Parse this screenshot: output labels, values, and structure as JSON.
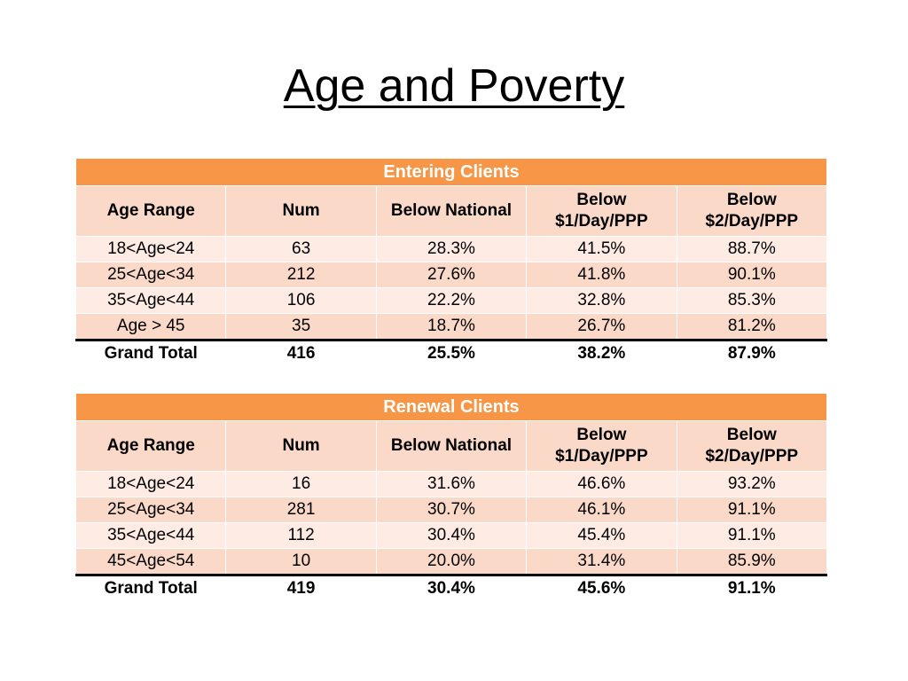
{
  "slide": {
    "title": "Age and Poverty"
  },
  "tables": [
    {
      "title": "Entering Clients",
      "columns": [
        "Age Range",
        "Num",
        "Below National",
        "Below\n$1/Day/PPP",
        "Below\n$2/Day/PPP"
      ],
      "rows": [
        [
          "18<Age<24",
          "63",
          "28.3%",
          "41.5%",
          "88.7%"
        ],
        [
          "25<Age<34",
          "212",
          "27.6%",
          "41.8%",
          "90.1%"
        ],
        [
          "35<Age<44",
          "106",
          "22.2%",
          "32.8%",
          "85.3%"
        ],
        [
          "Age > 45",
          "35",
          "18.7%",
          "26.7%",
          "81.2%"
        ]
      ],
      "total": [
        "Grand Total",
        "416",
        "25.5%",
        "38.2%",
        "87.9%"
      ]
    },
    {
      "title": "Renewal Clients",
      "columns": [
        "Age Range",
        "Num",
        "Below National",
        "Below\n$1/Day/PPP",
        "Below\n$2/Day/PPP"
      ],
      "rows": [
        [
          "18<Age<24",
          "16",
          "31.6%",
          "46.6%",
          "93.2%"
        ],
        [
          "25<Age<34",
          "281",
          "30.7%",
          "46.1%",
          "91.1%"
        ],
        [
          "35<Age<44",
          "112",
          "30.4%",
          "45.4%",
          "91.1%"
        ],
        [
          "45<Age<54",
          "10",
          "20.0%",
          "31.4%",
          "85.9%"
        ]
      ],
      "total": [
        "Grand Total",
        "419",
        "30.4%",
        "45.6%",
        "91.1%"
      ]
    }
  ],
  "colors": {
    "header": "#f79646",
    "band_light": "#fdebe4",
    "band_dark": "#fbd9c9"
  }
}
